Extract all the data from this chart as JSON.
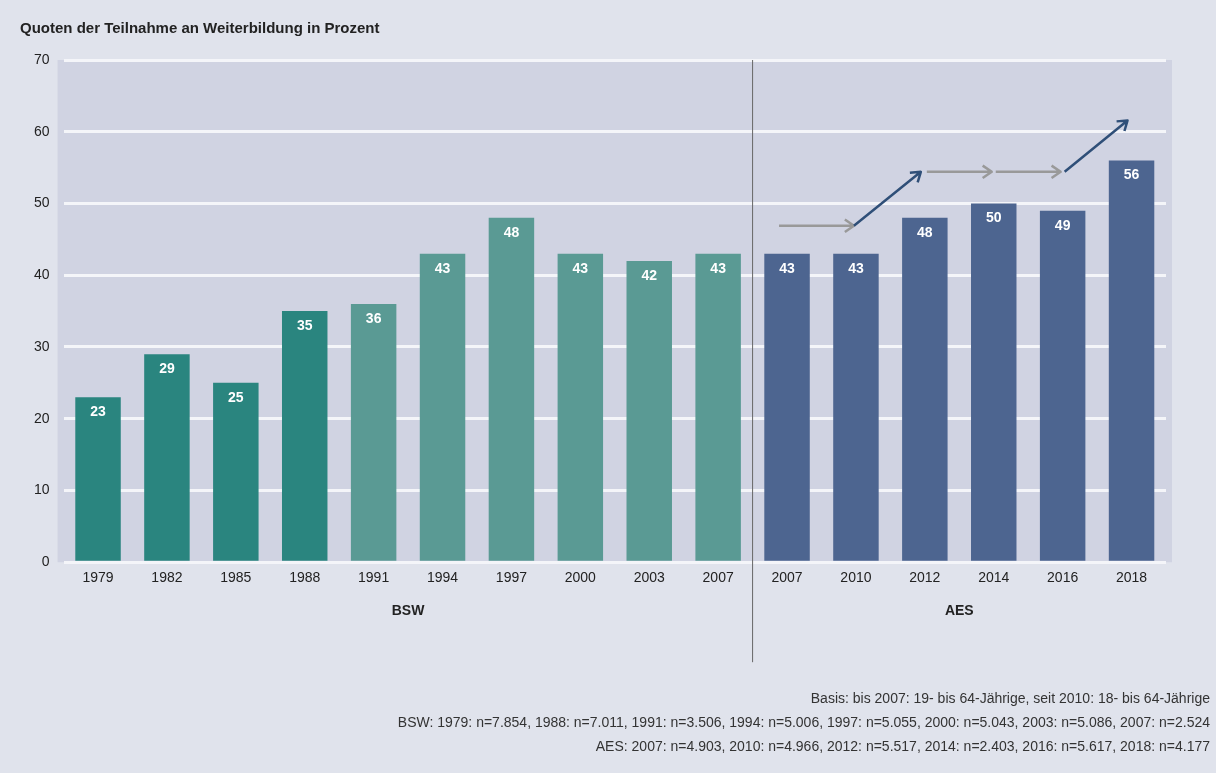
{
  "chart_data": {
    "type": "bar",
    "title": "Quoten der Teilnahme an Weiterbildung in Prozent",
    "categories": [
      "1979",
      "1982",
      "1985",
      "1988",
      "1991",
      "1994",
      "1997",
      "2000",
      "2003",
      "2007",
      "2007",
      "2010",
      "2012",
      "2014",
      "2016",
      "2018"
    ],
    "series": [
      {
        "name": "BSW",
        "colors": [
          "#2a857f",
          "#2a857f",
          "#2a857f",
          "#2a857f",
          "#5a9a94",
          "#5a9a94",
          "#5a9a94",
          "#5a9a94",
          "#5a9a94",
          "#5a9a94",
          null,
          null,
          null,
          null,
          null,
          null
        ],
        "values": [
          23,
          29,
          25,
          35,
          36,
          43,
          48,
          43,
          42,
          43,
          null,
          null,
          null,
          null,
          null,
          null
        ]
      },
      {
        "name": "AES",
        "color": "#4d6590",
        "values": [
          null,
          null,
          null,
          null,
          null,
          null,
          null,
          null,
          null,
          null,
          43,
          43,
          48,
          50,
          49,
          56
        ]
      }
    ],
    "ref_lines": [
      {
        "axis": "x",
        "value": "2007",
        "color": "#666666"
      }
    ],
    "ylim": [
      0,
      70
    ],
    "yticks": [
      0,
      10,
      20,
      30,
      40,
      50,
      60,
      70
    ],
    "grid": "y",
    "data_labels": true,
    "annotations": [
      "Basis: bis 2007: 19- bis 64-Jährige, seit 2010: 18- bis 64-Jährige",
      "BSW: 1979: n=7.854, 1988: n=7.011, 1991: n=3.506, 1994: n=5.006, 1997: n=5.055, 2000: n=5.043, 2003: n=5.086, 2007: n=2.524",
      "AES: 2007: n=4.903, 2010: n=4.966, 2012: n=5.517, 2014: n=2.403, 2016: n=5.617, 2018: n=4.177"
    ]
  }
}
